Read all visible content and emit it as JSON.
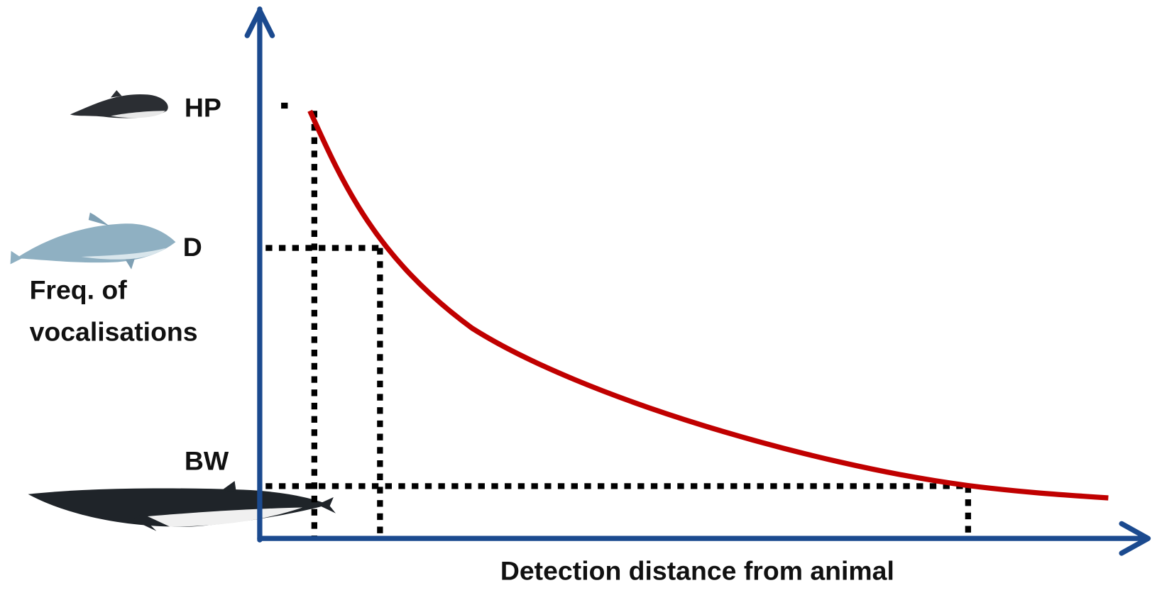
{
  "y_axis_label": {
    "lines": [
      "Freq. of",
      "vocalisations"
    ]
  },
  "x_axis_label": "Detection distance from animal",
  "species": [
    {
      "label": "HP"
    },
    {
      "label": "D"
    },
    {
      "label": "BW"
    }
  ]
}
